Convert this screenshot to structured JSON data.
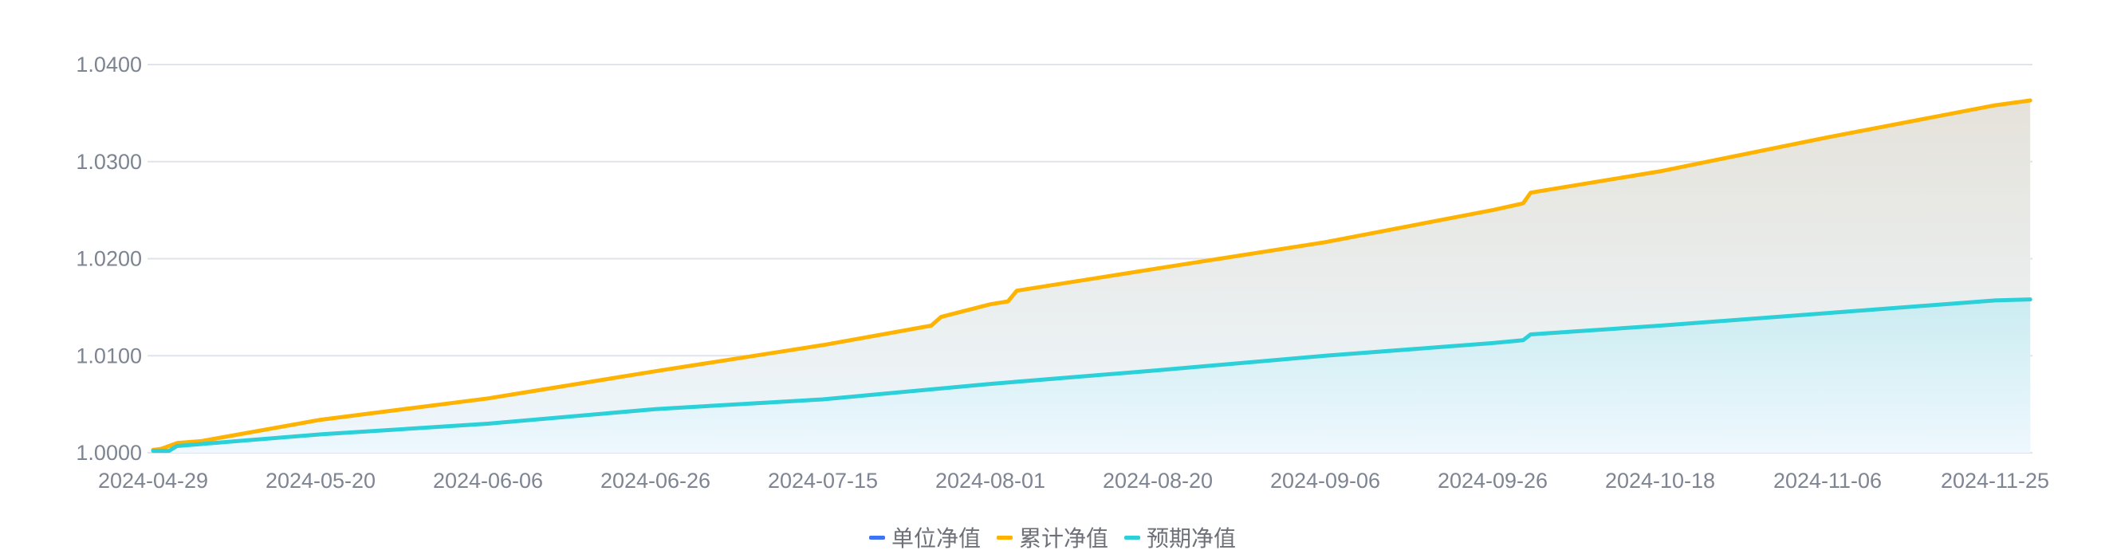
{
  "chart_data": {
    "type": "line",
    "title": "",
    "xlabel": "",
    "ylabel": "",
    "ylim": [
      1.0,
      1.04
    ],
    "yticks": [
      "1.0000",
      "1.0100",
      "1.0200",
      "1.0300",
      "1.0400"
    ],
    "xticks": [
      "2024-04-29",
      "2024-05-20",
      "2024-06-06",
      "2024-06-26",
      "2024-07-15",
      "2024-08-01",
      "2024-08-20",
      "2024-09-06",
      "2024-09-26",
      "2024-10-18",
      "2024-11-06",
      "2024-11-25"
    ],
    "grid": true,
    "legend_position": "bottom",
    "series": [
      {
        "name": "单位净值",
        "color": "#3d74f5",
        "points": []
      },
      {
        "name": "累计净值",
        "color": "#fdb300",
        "area": true,
        "points": [
          [
            "2024-04-29",
            1.0003
          ],
          [
            "2024-04-30",
            1.0004
          ],
          [
            "2024-05-02",
            1.001
          ],
          [
            "2024-05-05",
            1.0012
          ],
          [
            "2024-05-20",
            1.0034
          ],
          [
            "2024-06-06",
            1.0056
          ],
          [
            "2024-06-26",
            1.0084
          ],
          [
            "2024-07-15",
            1.0111
          ],
          [
            "2024-07-26",
            1.0131
          ],
          [
            "2024-07-27",
            1.014
          ],
          [
            "2024-08-01",
            1.0153
          ],
          [
            "2024-08-03",
            1.0156
          ],
          [
            "2024-08-04",
            1.0167
          ],
          [
            "2024-08-20",
            1.019
          ],
          [
            "2024-09-06",
            1.0217
          ],
          [
            "2024-09-26",
            1.025
          ],
          [
            "2024-09-30",
            1.0257
          ],
          [
            "2024-10-01",
            1.0268
          ],
          [
            "2024-10-18",
            1.029
          ],
          [
            "2024-11-06",
            1.0325
          ],
          [
            "2024-11-25",
            1.0358
          ],
          [
            "2024-11-29",
            1.0363
          ]
        ]
      },
      {
        "name": "预期净值",
        "color": "#2bd0d9",
        "area": true,
        "points": [
          [
            "2024-04-29",
            1.0002
          ],
          [
            "2024-05-01",
            1.0002
          ],
          [
            "2024-05-02",
            1.0007
          ],
          [
            "2024-05-20",
            1.0019
          ],
          [
            "2024-06-06",
            1.003
          ],
          [
            "2024-06-26",
            1.0045
          ],
          [
            "2024-07-15",
            1.0055
          ],
          [
            "2024-08-01",
            1.0071
          ],
          [
            "2024-08-20",
            1.0085
          ],
          [
            "2024-09-06",
            1.01
          ],
          [
            "2024-09-26",
            1.0113
          ],
          [
            "2024-09-30",
            1.0116
          ],
          [
            "2024-10-01",
            1.0122
          ],
          [
            "2024-10-18",
            1.0131
          ],
          [
            "2024-11-06",
            1.0144
          ],
          [
            "2024-11-25",
            1.0157
          ],
          [
            "2024-11-29",
            1.0158
          ]
        ]
      }
    ]
  }
}
